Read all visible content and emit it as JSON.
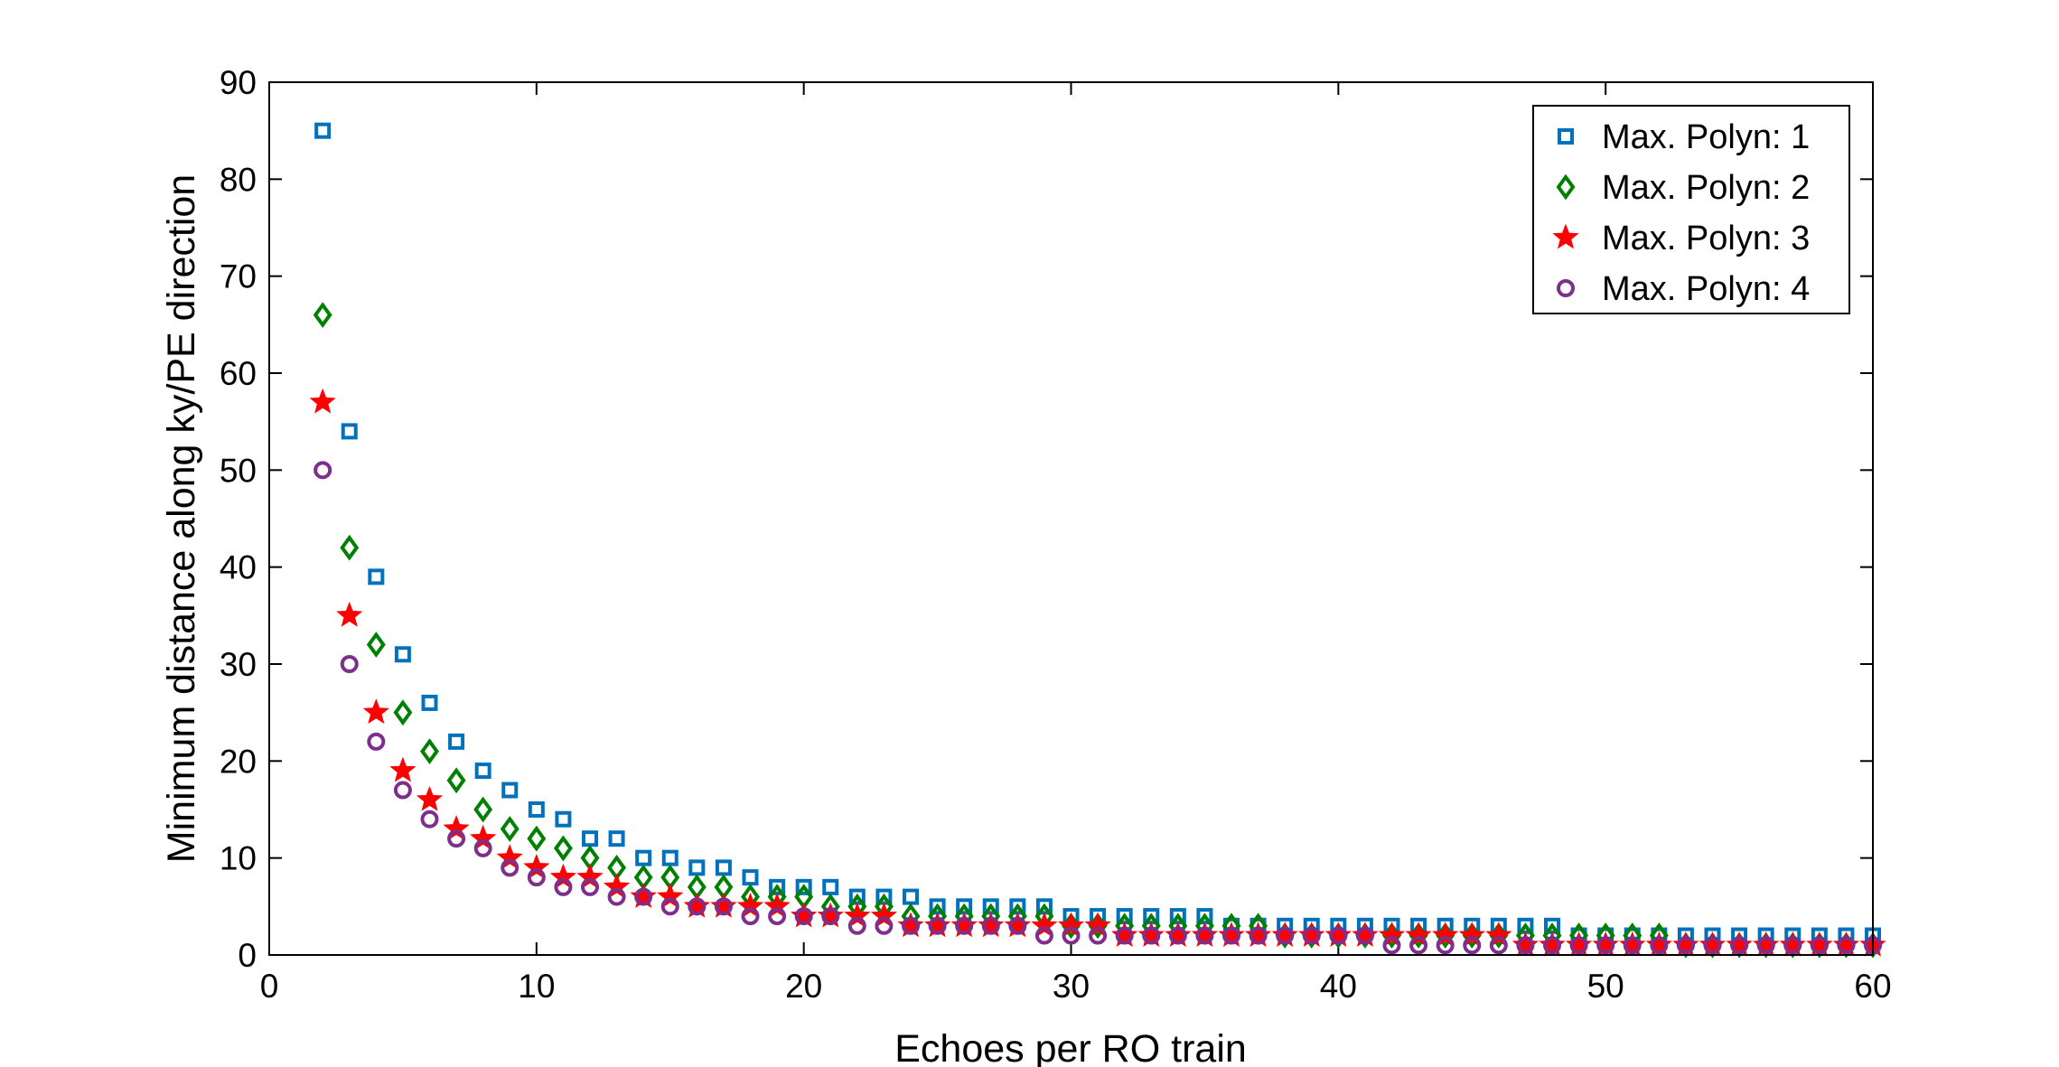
{
  "chart_data": {
    "type": "scatter",
    "title": "",
    "xlabel": "Echoes per RO train",
    "ylabel": "Minimum distance along ky/PE direction",
    "xlim": [
      0,
      60
    ],
    "ylim": [
      0,
      90
    ],
    "xticks": [
      0,
      10,
      20,
      30,
      40,
      50,
      60
    ],
    "yticks": [
      0,
      10,
      20,
      30,
      40,
      50,
      60,
      70,
      80,
      90
    ],
    "grid": false,
    "legend_position": "top-right",
    "x": [
      2,
      3,
      4,
      5,
      6,
      7,
      8,
      9,
      10,
      11,
      12,
      13,
      14,
      15,
      16,
      17,
      18,
      19,
      20,
      21,
      22,
      23,
      24,
      25,
      26,
      27,
      28,
      29,
      30,
      31,
      32,
      33,
      34,
      35,
      36,
      37,
      38,
      39,
      40,
      41,
      42,
      43,
      44,
      45,
      46,
      47,
      48,
      49,
      50,
      51,
      52,
      53,
      54,
      55,
      56,
      57,
      58,
      59,
      60
    ],
    "series": [
      {
        "name": "Max. Polyn: 1",
        "marker": "square",
        "color": "#0072BD",
        "values": [
          85,
          54,
          39,
          31,
          26,
          22,
          19,
          17,
          15,
          14,
          12,
          12,
          10,
          10,
          9,
          9,
          8,
          7,
          7,
          7,
          6,
          6,
          6,
          5,
          5,
          5,
          5,
          5,
          4,
          4,
          4,
          4,
          4,
          4,
          3,
          3,
          3,
          3,
          3,
          3,
          3,
          3,
          3,
          3,
          3,
          3,
          3,
          2,
          2,
          2,
          2,
          2,
          2,
          2,
          2,
          2,
          2,
          2,
          2
        ]
      },
      {
        "name": "Max. Polyn: 2",
        "marker": "diamond",
        "color": "#008000",
        "values": [
          66,
          42,
          32,
          25,
          21,
          18,
          15,
          13,
          12,
          11,
          10,
          9,
          8,
          8,
          7,
          7,
          6,
          6,
          6,
          5,
          5,
          5,
          4,
          4,
          4,
          4,
          4,
          4,
          3,
          3,
          3,
          3,
          3,
          3,
          3,
          3,
          2,
          2,
          2,
          2,
          2,
          2,
          2,
          2,
          2,
          2,
          2,
          2,
          2,
          2,
          2,
          1,
          1,
          1,
          1,
          1,
          1,
          1,
          1
        ]
      },
      {
        "name": "Max. Polyn: 3",
        "marker": "star",
        "color": "#FF0000",
        "values": [
          57,
          35,
          25,
          19,
          16,
          13,
          12,
          10,
          9,
          8,
          8,
          7,
          6,
          6,
          5,
          5,
          5,
          5,
          4,
          4,
          4,
          4,
          3,
          3,
          3,
          3,
          3,
          3,
          3,
          3,
          2,
          2,
          2,
          2,
          2,
          2,
          2,
          2,
          2,
          2,
          2,
          2,
          2,
          2,
          2,
          1,
          1,
          1,
          1,
          1,
          1,
          1,
          1,
          1,
          1,
          1,
          1,
          1,
          1
        ]
      },
      {
        "name": "Max. Polyn: 4",
        "marker": "circle",
        "color": "#7E2F8E",
        "values": [
          50,
          30,
          22,
          17,
          14,
          12,
          11,
          9,
          8,
          7,
          7,
          6,
          6,
          5,
          5,
          5,
          4,
          4,
          4,
          4,
          3,
          3,
          3,
          3,
          3,
          3,
          3,
          2,
          2,
          2,
          2,
          2,
          2,
          2,
          2,
          2,
          2,
          2,
          2,
          2,
          1,
          1,
          1,
          1,
          1,
          1,
          1,
          1,
          1,
          1,
          1,
          1,
          1,
          1,
          1,
          1,
          1,
          1,
          1
        ]
      }
    ]
  }
}
